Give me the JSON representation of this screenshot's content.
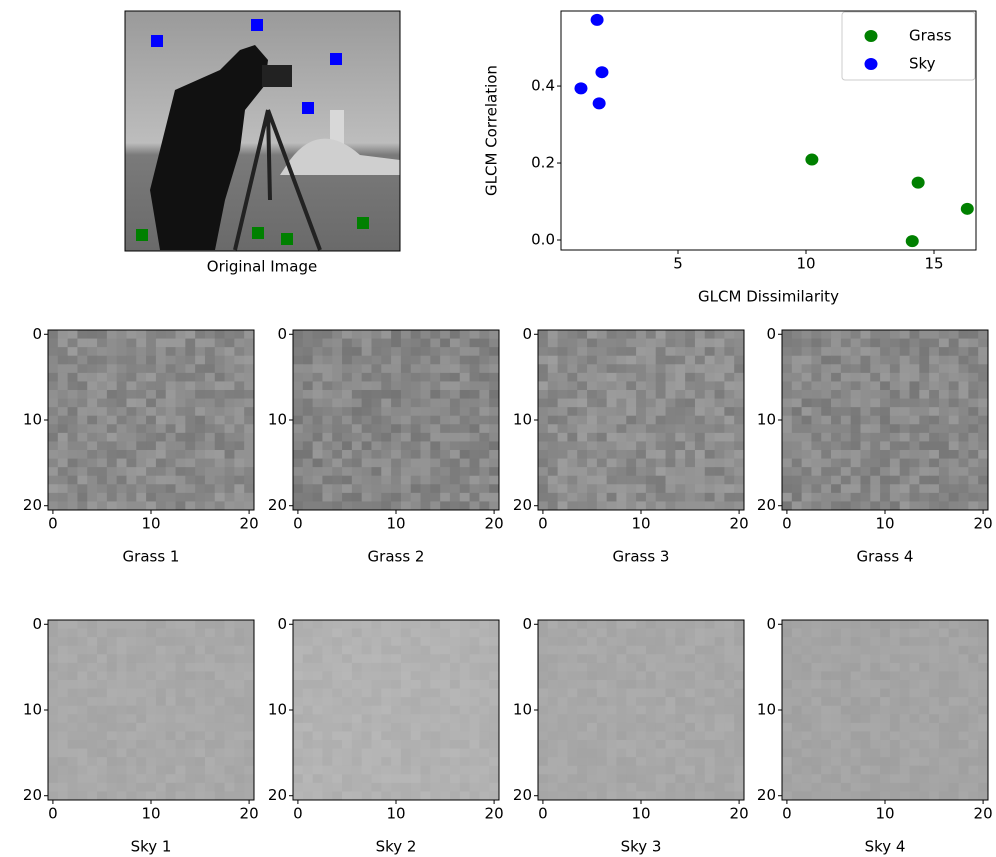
{
  "chart_data": [
    {
      "type": "photo",
      "xlabel": "Original Image"
    },
    {
      "type": "scatter",
      "xlabel": "GLCM Dissimilarity",
      "ylabel": "GLCM Correlation",
      "xlim": [
        0.43,
        16.64
      ],
      "ylim": [
        -0.026,
        0.595
      ],
      "xticks": [
        5,
        10,
        15
      ],
      "yticks": [
        {
          "value": 0,
          "label": "0.0"
        },
        {
          "value": 0.2,
          "label": "0.2"
        },
        {
          "value": 0.4,
          "label": "0.4"
        }
      ],
      "legend": "upper right",
      "series": [
        {
          "name": "Grass",
          "color": "green",
          "x": [
            10.23,
            14.38,
            16.3,
            14.15
          ],
          "values": [
            0.209,
            0.149,
            0.081,
            -0.003
          ]
        },
        {
          "name": "Sky",
          "color": "blue",
          "x": [
            1.84,
            2.03,
            1.21,
            1.92
          ],
          "values": [
            0.572,
            0.436,
            0.394,
            0.355
          ]
        }
      ]
    },
    {
      "type": "image",
      "xlabel": "Grass 1",
      "color": "#8a8a8a",
      "xlim": [
        -0.5,
        20.5
      ],
      "ylim": [
        20.5,
        -0.5
      ],
      "xticks": [
        0,
        10,
        20
      ],
      "yticks": [
        0,
        10,
        20
      ]
    },
    {
      "type": "image",
      "xlabel": "Grass 2",
      "color": "#868686",
      "xlim": [
        -0.5,
        20.5
      ],
      "ylim": [
        20.5,
        -0.5
      ],
      "xticks": [
        0,
        10,
        20
      ],
      "yticks": [
        0,
        10,
        20
      ]
    },
    {
      "type": "image",
      "xlabel": "Grass 3",
      "color": "#8c8c8c",
      "xlim": [
        -0.5,
        20.5
      ],
      "ylim": [
        20.5,
        -0.5
      ],
      "xticks": [
        0,
        10,
        20
      ],
      "yticks": [
        0,
        10,
        20
      ]
    },
    {
      "type": "image",
      "xlabel": "Grass 4",
      "color": "#888888",
      "xlim": [
        -0.5,
        20.5
      ],
      "ylim": [
        20.5,
        -0.5
      ],
      "xticks": [
        0,
        10,
        20
      ],
      "yticks": [
        0,
        10,
        20
      ]
    },
    {
      "type": "image",
      "xlabel": "Sky 1",
      "color": "#a9a9a9",
      "xlim": [
        -0.5,
        20.5
      ],
      "ylim": [
        20.5,
        -0.5
      ],
      "xticks": [
        0,
        10,
        20
      ],
      "yticks": [
        0,
        10,
        20
      ]
    },
    {
      "type": "image",
      "xlabel": "Sky 2",
      "color": "#b2b2b2",
      "xlim": [
        -0.5,
        20.5
      ],
      "ylim": [
        20.5,
        -0.5
      ],
      "xticks": [
        0,
        10,
        20
      ],
      "yticks": [
        0,
        10,
        20
      ]
    },
    {
      "type": "image",
      "xlabel": "Sky 3",
      "color": "#a8a8a8",
      "xlim": [
        -0.5,
        20.5
      ],
      "ylim": [
        20.5,
        -0.5
      ],
      "xticks": [
        0,
        10,
        20
      ],
      "yticks": [
        0,
        10,
        20
      ]
    },
    {
      "type": "image",
      "xlabel": "Sky 4",
      "color": "#a4a4a4",
      "xlim": [
        -0.5,
        20.5
      ],
      "ylim": [
        20.5,
        -0.5
      ],
      "xticks": [
        0,
        10,
        20
      ],
      "yticks": [
        0,
        10,
        20
      ]
    }
  ]
}
